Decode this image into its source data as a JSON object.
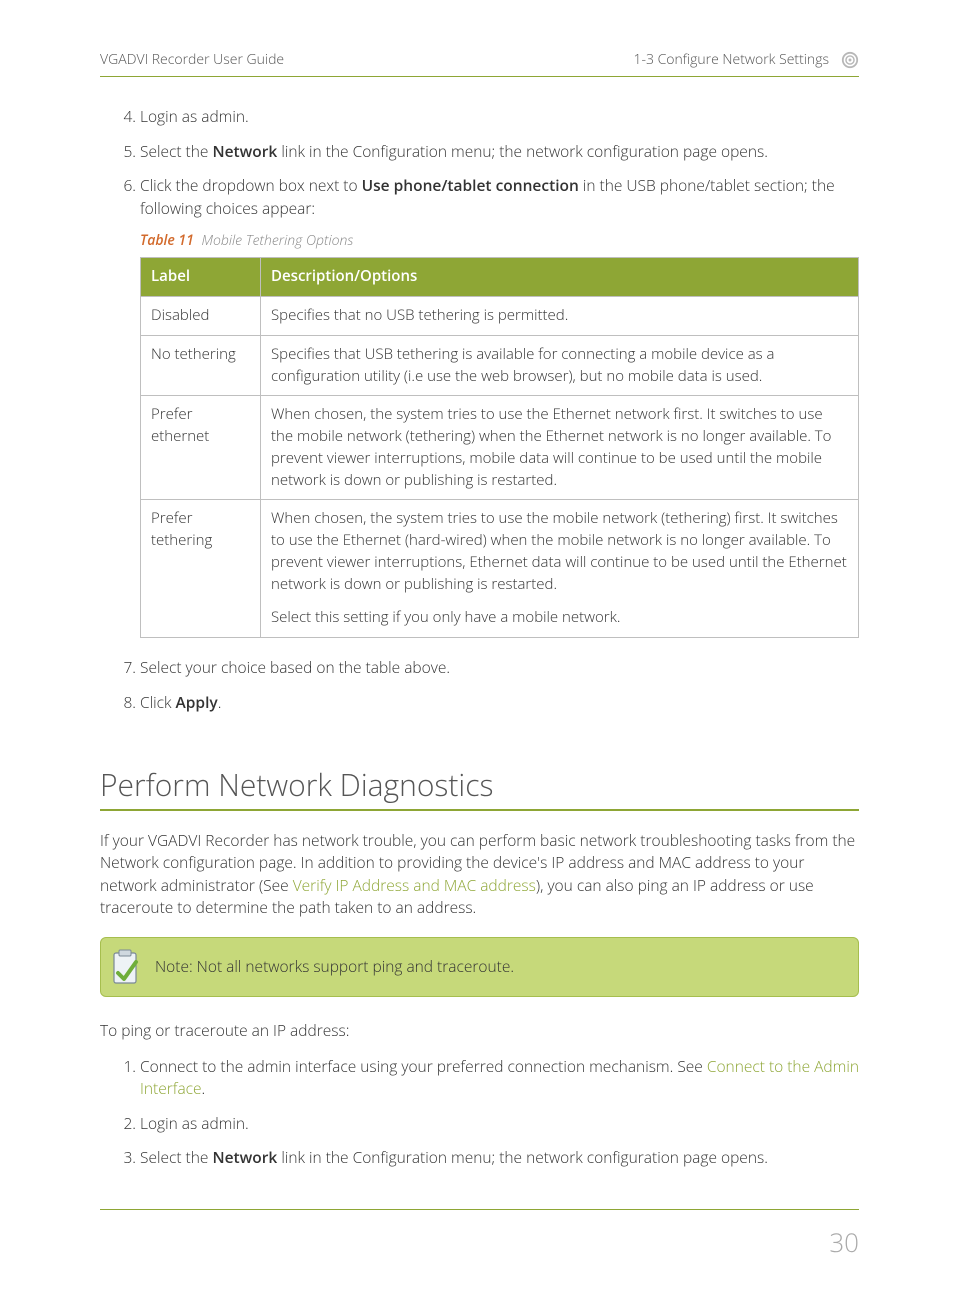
{
  "header": {
    "left": "VGADVI Recorder User Guide",
    "right": "1-3 Configure Network Settings"
  },
  "steps_top": [
    {
      "n": 4,
      "html": "Login as admin."
    },
    {
      "n": 5,
      "html": "Select the <b>Network</b> link in the Configuration menu; the network configuration page opens."
    },
    {
      "n": 6,
      "html": "Click the dropdown box next to <b>Use phone/tablet connection</b> in the USB phone/tablet section; the following choices appear:"
    }
  ],
  "table_caption": {
    "num": "Table 11",
    "title": "Mobile Tethering Options"
  },
  "table": {
    "col_label": "Label",
    "col_desc": "Description/Options",
    "rows": [
      {
        "label": "Disabled",
        "desc": "Specifies that no USB tethering is permitted."
      },
      {
        "label": "No tethering",
        "desc": "Specifies that USB tethering is available for connecting a mobile device as a configuration utility (i.e use the web browser), but no mobile data is used."
      },
      {
        "label": "Prefer ethernet",
        "desc": "When chosen, the system tries to use the Ethernet network first. It switches to use the mobile network (tethering) when the Ethernet network is no longer available. To prevent viewer interruptions, mobile data will continue to be used until the mobile network is down or publishing is restarted."
      },
      {
        "label": "Prefer tethering",
        "desc": "When chosen, the system tries to use the mobile network (tethering) first. It switches to use the Ethernet (hard-wired) when the mobile network is no longer available. To prevent viewer interruptions, Ethernet data will continue to be used until the Ethernet network is down or publishing is restarted.",
        "desc2": "Select this setting if you only have a mobile network."
      }
    ]
  },
  "steps_after_table": [
    {
      "n": 7,
      "html": "Select your choice based on the table above."
    },
    {
      "n": 8,
      "html": "Click <b>Apply</b>."
    }
  ],
  "section_heading": "Perform Network Diagnostics",
  "section_body_parts": {
    "a": "If your VGADVI Recorder has network trouble, you can perform basic network troubleshooting tasks from the Network configuration page. In addition to providing the device's IP address and MAC address to your network administrator (See ",
    "link": "Verify IP Address and MAC address",
    "b": "), you can also ping an IP address or use traceroute to determine the path taken to an address."
  },
  "note_text": "Note: Not all networks support ping and traceroute.",
  "ping_intro": "To ping or traceroute an IP address:",
  "steps_ping": [
    {
      "n": 1,
      "html_a": "Connect to the admin interface using your preferred connection mechanism. See ",
      "link": "Connect to the Admin Interface",
      "html_b": "."
    },
    {
      "n": 2,
      "html": "Login as admin."
    },
    {
      "n": 3,
      "html": "Select the <b>Network</b> link in the Configuration menu; the network configuration page opens."
    }
  ],
  "page_number": "30",
  "colors": {
    "accent": "#8ea635",
    "table_header_bg": "#8ea635",
    "table_header_fg": "#ffffff",
    "table_border": "#bfbfbf",
    "caption_num": "#d26a2c",
    "note_bg": "#c6d97a",
    "note_border": "#a6be4e",
    "body_text": "#333333",
    "muted_text": "#888888",
    "page_num": "#a9a9a9"
  }
}
